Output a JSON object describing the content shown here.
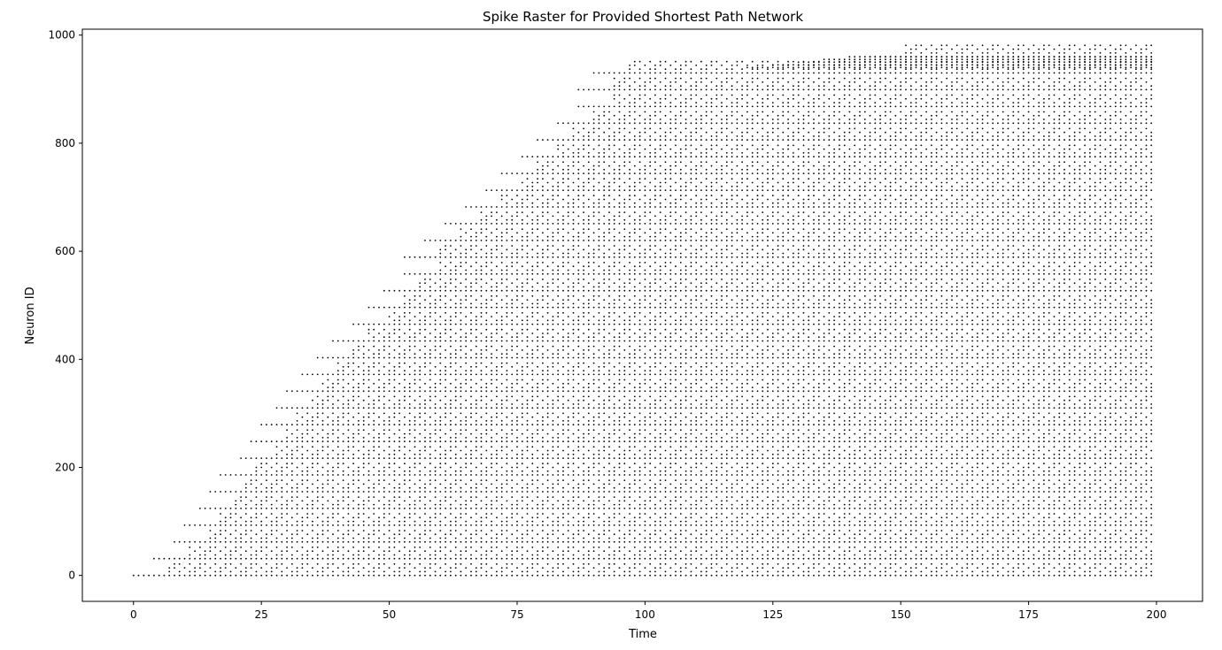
{
  "chart_data": {
    "type": "scatter",
    "title": "Spike Raster for Provided Shortest Path Network",
    "xlabel": "Time",
    "ylabel": "Neuron ID",
    "xlim": [
      -10,
      209
    ],
    "ylim": [
      -48,
      1011
    ],
    "xticks": [
      0,
      25,
      50,
      75,
      100,
      125,
      150,
      175,
      200
    ],
    "yticks": [
      0,
      200,
      400,
      600,
      800,
      1000
    ],
    "grid": false,
    "legend": "none",
    "marker_color": "#000000",
    "time_range": [
      0,
      199
    ],
    "neuron_range": [
      0,
      960
    ],
    "series": [
      {
        "onset_points": [
          {
            "time": 0,
            "neuron_id": 0
          },
          {
            "time": 4,
            "neuron_id": 31
          },
          {
            "time": 8,
            "neuron_id": 62
          },
          {
            "time": 10,
            "neuron_id": 93
          },
          {
            "time": 13,
            "neuron_id": 124
          },
          {
            "time": 15,
            "neuron_id": 155
          },
          {
            "time": 17,
            "neuron_id": 186
          },
          {
            "time": 21,
            "neuron_id": 217
          },
          {
            "time": 23,
            "neuron_id": 248
          },
          {
            "time": 25,
            "neuron_id": 279
          },
          {
            "time": 28,
            "neuron_id": 310
          },
          {
            "time": 30,
            "neuron_id": 341
          },
          {
            "time": 33,
            "neuron_id": 372
          },
          {
            "time": 36,
            "neuron_id": 403
          },
          {
            "time": 39,
            "neuron_id": 434
          },
          {
            "time": 43,
            "neuron_id": 465
          },
          {
            "time": 46,
            "neuron_id": 496
          },
          {
            "time": 49,
            "neuron_id": 527
          },
          {
            "time": 53,
            "neuron_id": 558
          },
          {
            "time": 53,
            "neuron_id": 589
          },
          {
            "time": 57,
            "neuron_id": 620
          },
          {
            "time": 61,
            "neuron_id": 651
          },
          {
            "time": 65,
            "neuron_id": 682
          },
          {
            "time": 69,
            "neuron_id": 713
          },
          {
            "time": 72,
            "neuron_id": 744
          },
          {
            "time": 76,
            "neuron_id": 775
          },
          {
            "time": 79,
            "neuron_id": 806
          },
          {
            "time": 83,
            "neuron_id": 837
          },
          {
            "time": 87,
            "neuron_id": 868
          },
          {
            "time": 87,
            "neuron_id": 899
          },
          {
            "time": 90,
            "neuron_id": 930
          },
          {
            "time": 144,
            "neuron_id": 960
          }
        ]
      }
    ]
  }
}
